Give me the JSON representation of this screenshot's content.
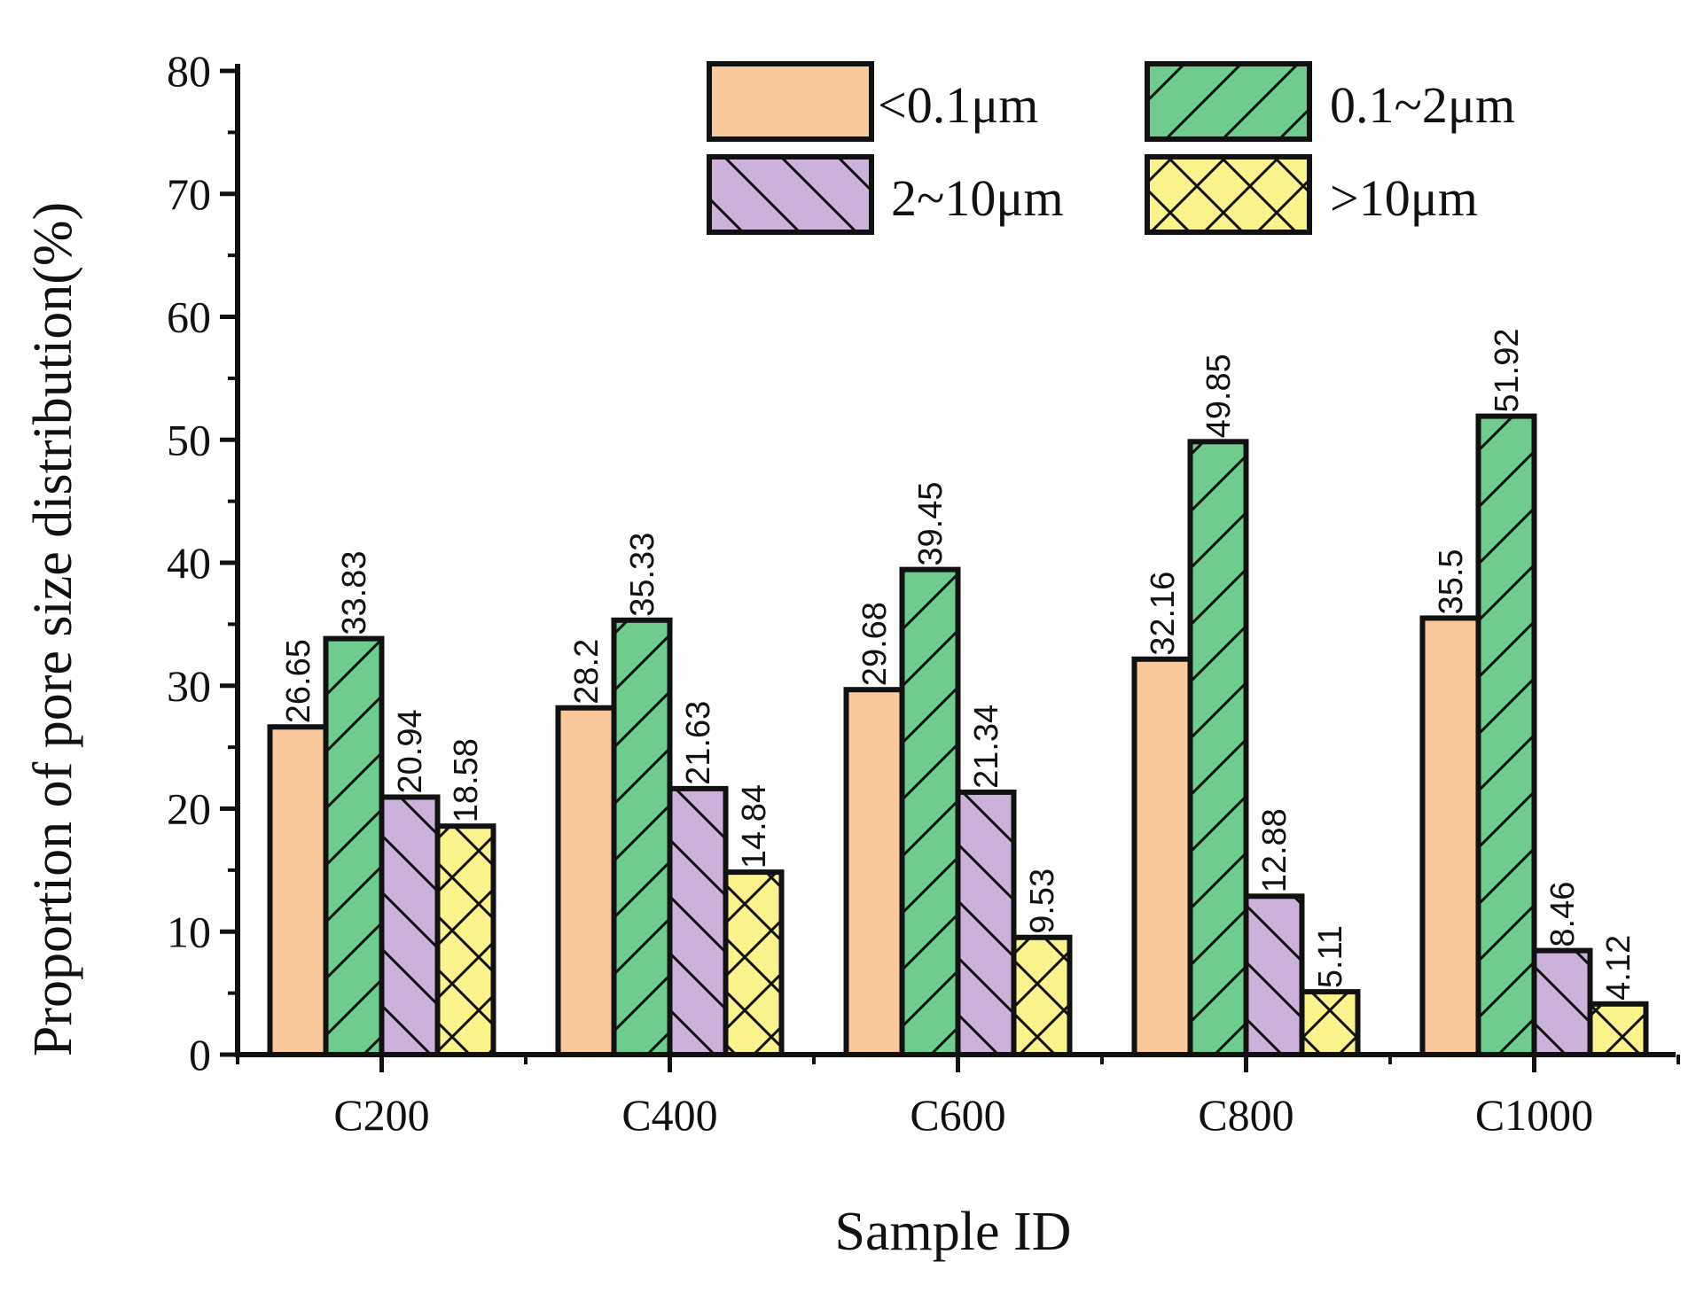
{
  "chart_data": {
    "type": "bar",
    "title": "",
    "xlabel": "Sample ID",
    "ylabel": "Proportion of pore size distribution(%)",
    "ylim": [
      0,
      80
    ],
    "yticks": [
      0,
      10,
      20,
      30,
      40,
      50,
      60,
      70,
      80
    ],
    "categories": [
      "C200",
      "C400",
      "C600",
      "C800",
      "C1000"
    ],
    "series": [
      {
        "name": "<0.1μm",
        "values": [
          26.65,
          28.2,
          29.68,
          32.16,
          35.5
        ],
        "labels": [
          "26.65",
          "28.2",
          "29.68",
          "32.16",
          "35.5"
        ],
        "color": "#F9C89B",
        "hatch": "none"
      },
      {
        "name": "0.1~2μm",
        "values": [
          33.83,
          35.33,
          39.45,
          49.85,
          51.92
        ],
        "labels": [
          "33.83",
          "35.33",
          "39.45",
          "49.85",
          "51.92"
        ],
        "color": "#6DCC8E",
        "hatch": "forward"
      },
      {
        "name": "2~10μm",
        "values": [
          20.94,
          21.63,
          21.34,
          12.88,
          8.46
        ],
        "labels": [
          "20.94",
          "21.63",
          "21.34",
          "12.88",
          "8.46"
        ],
        "color": "#CDB3DC",
        "hatch": "back"
      },
      {
        "name": ">10μm",
        "values": [
          18.58,
          14.84,
          9.53,
          5.11,
          4.12
        ],
        "labels": [
          "18.58",
          "14.84",
          "9.53",
          "5.11",
          "4.12"
        ],
        "color": "#FAF38C",
        "hatch": "cross"
      }
    ],
    "legend_position": "top-right",
    "grid": false
  }
}
